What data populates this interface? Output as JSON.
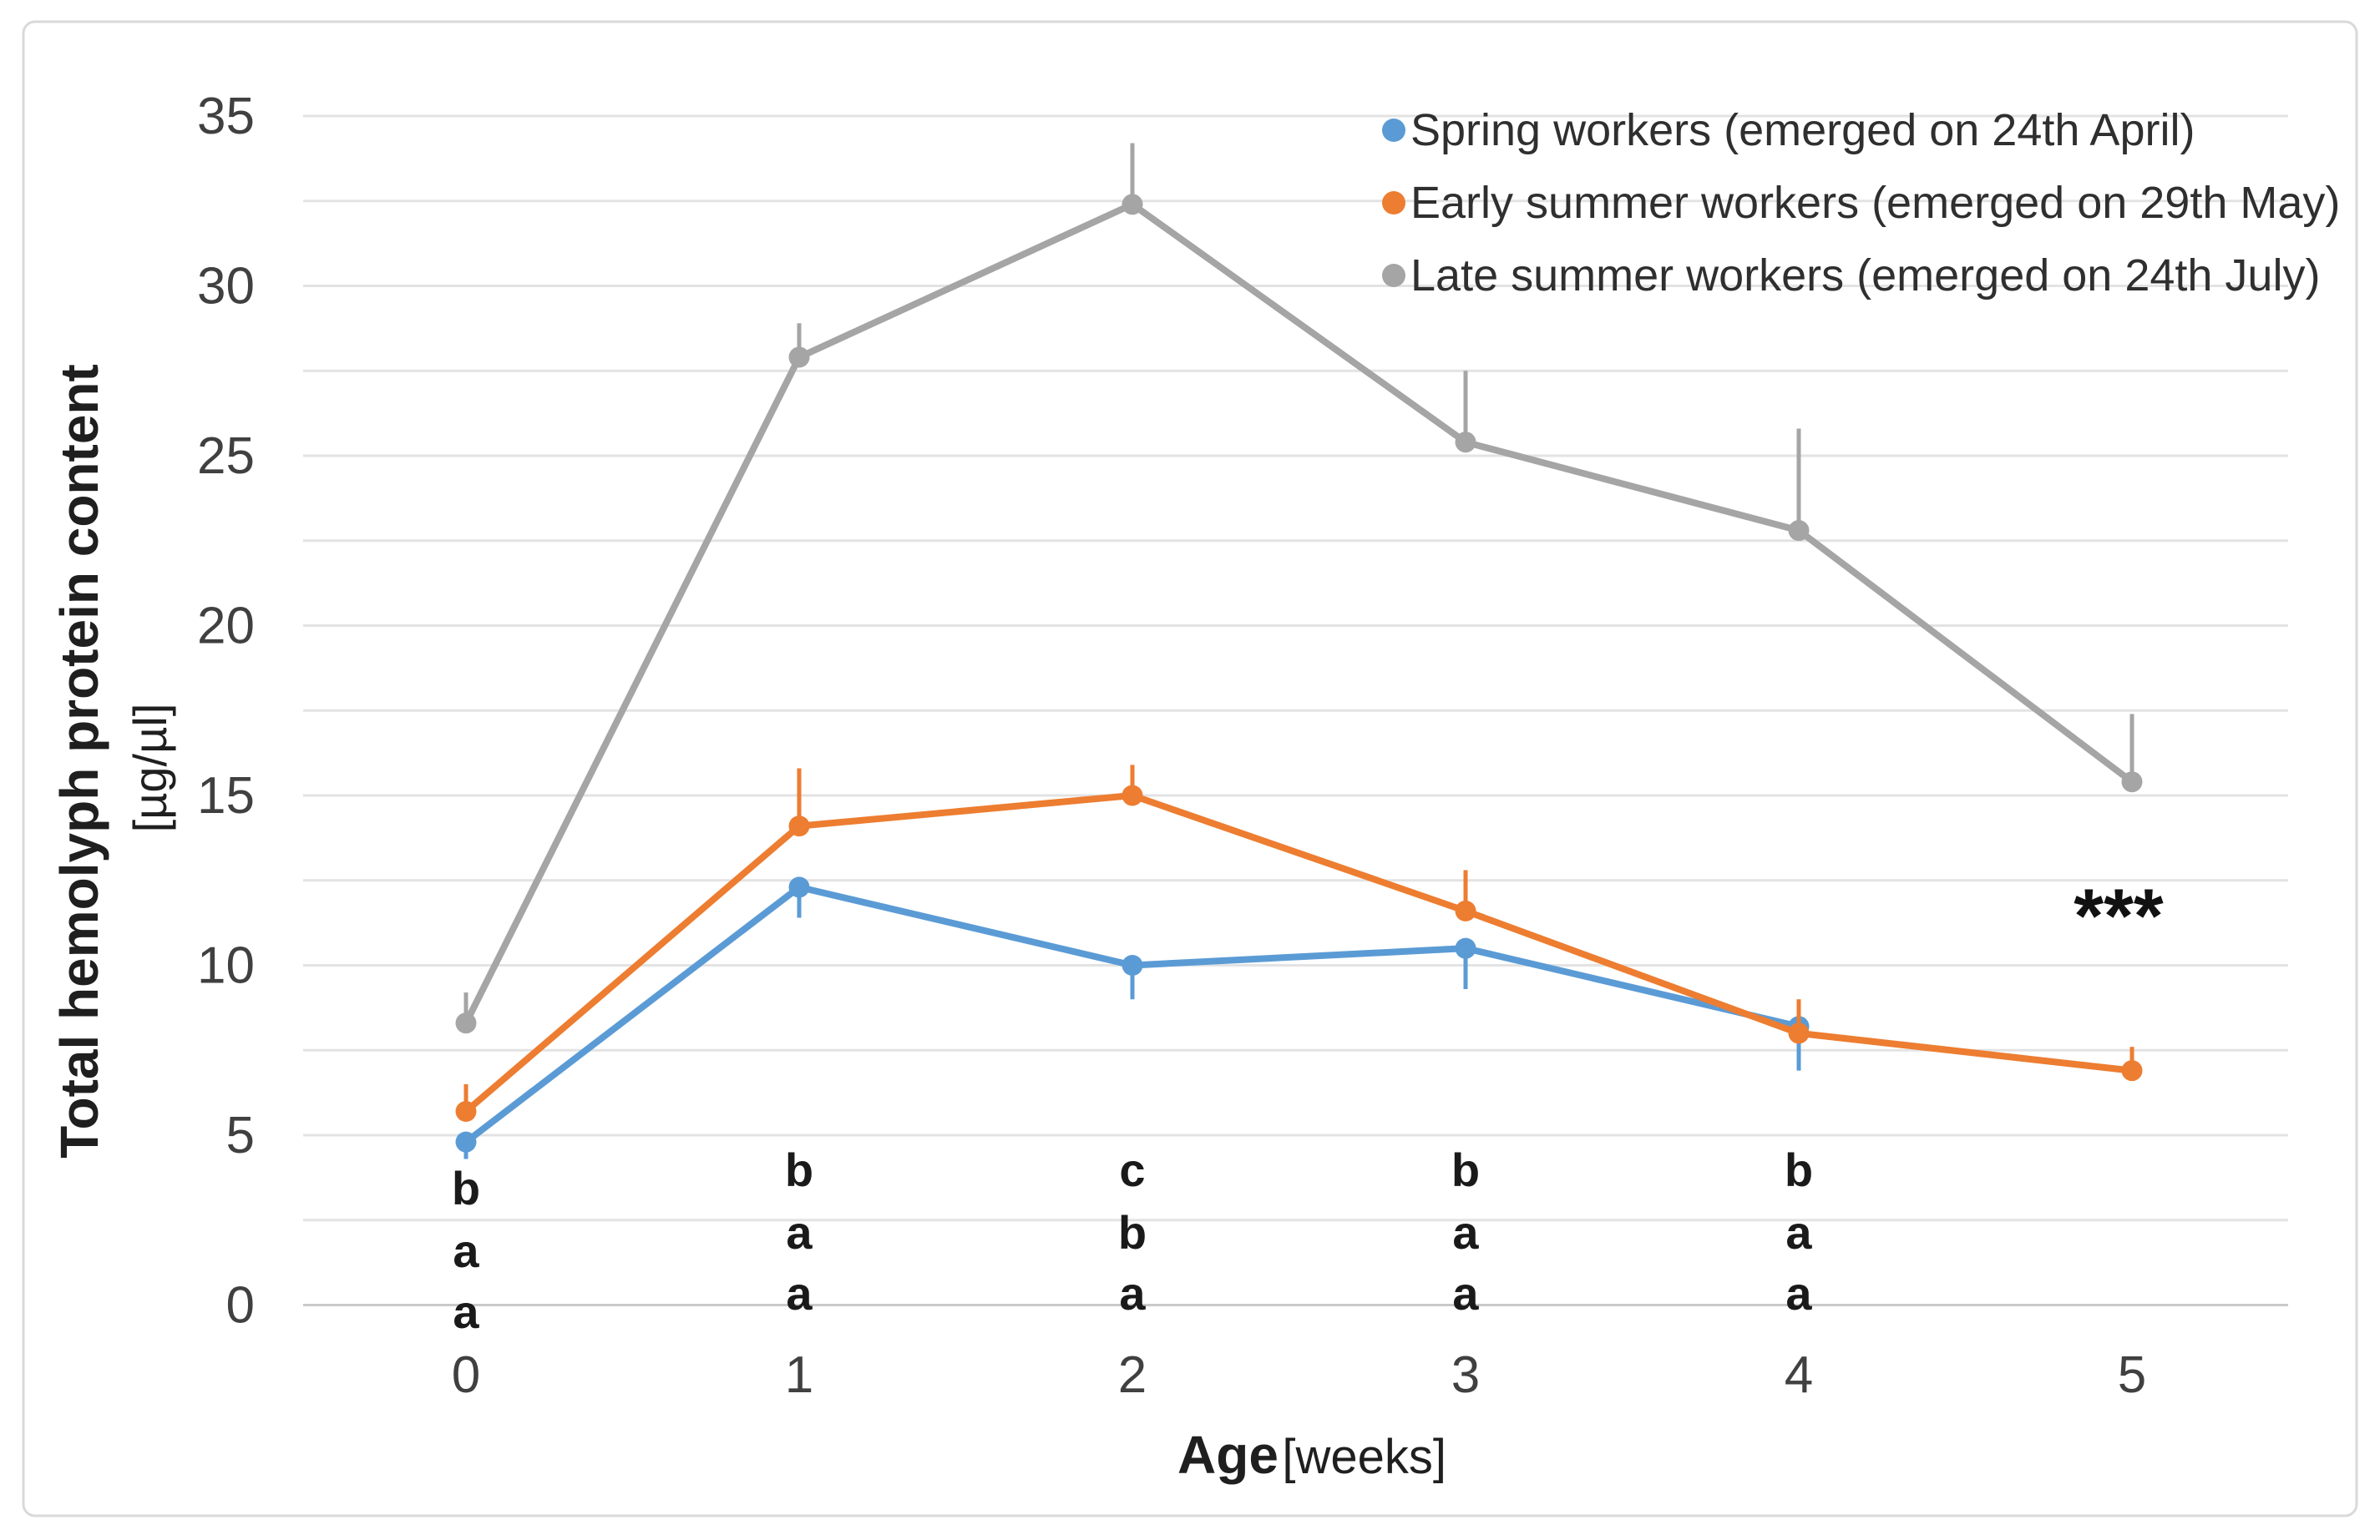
{
  "figure": {
    "y_axis_title": "Total hemolyph protein content",
    "y_axis_unit": "[µg/µl]",
    "x_axis_title": "Age",
    "x_axis_unit": "[weeks]"
  },
  "legend": {
    "position": "top-right",
    "items": [
      {
        "label": "Spring workers (emerged on 24th April)",
        "color": "#5B9BD5"
      },
      {
        "label": "Early summer workers (emerged on 29th May)",
        "color": "#ED7D31"
      },
      {
        "label": "Late summer workers (emerged on 24th July)",
        "color": "#A5A5A5"
      }
    ]
  },
  "chart_data": {
    "type": "line",
    "title": "",
    "xlabel": "Age [weeks]",
    "ylabel": "Total hemolyph protein content [µg/µl]",
    "categories": [
      "0",
      "1",
      "2",
      "3",
      "4",
      "5"
    ],
    "ylim": [
      0,
      35
    ],
    "y_ticks": [
      0,
      5,
      10,
      15,
      20,
      25,
      30,
      35
    ],
    "gridline_step": 2.5,
    "grid": true,
    "legend_position": "top-right",
    "series": [
      {
        "name": "Spring workers (emerged on 24th April)",
        "color": "#5B9BD5",
        "x": [
          0,
          1,
          2,
          3,
          4
        ],
        "values": [
          4.8,
          12.3,
          10.0,
          10.5,
          8.2
        ],
        "error_direction": "minus",
        "errors": [
          0.5,
          0.9,
          1.0,
          1.2,
          1.3
        ]
      },
      {
        "name": "Early summer workers (emerged on 29th May)",
        "color": "#ED7D31",
        "x": [
          0,
          1,
          2,
          3,
          4,
          5
        ],
        "values": [
          5.7,
          14.1,
          15.0,
          11.6,
          8.0,
          6.9
        ],
        "error_direction": "plus",
        "errors": [
          0.8,
          1.7,
          0.9,
          1.2,
          1.0,
          0.7
        ]
      },
      {
        "name": "Late summer workers (emerged on 24th July)",
        "color": "#A5A5A5",
        "x": [
          0,
          1,
          2,
          3,
          4,
          5
        ],
        "values": [
          8.3,
          27.9,
          32.4,
          25.4,
          22.8,
          15.4
        ],
        "error_direction": "plus",
        "errors": [
          0.9,
          1.0,
          1.8,
          2.1,
          3.0,
          2.0
        ]
      }
    ],
    "significance_letters": [
      {
        "week": 0,
        "letters": [
          "b",
          "a",
          "a"
        ]
      },
      {
        "week": 1,
        "letters": [
          "b",
          "a",
          "a"
        ]
      },
      {
        "week": 2,
        "letters": [
          "c",
          "b",
          "a"
        ]
      },
      {
        "week": 3,
        "letters": [
          "b",
          "a",
          "a"
        ]
      },
      {
        "week": 4,
        "letters": [
          "b",
          "a",
          "a"
        ]
      }
    ],
    "annotation": {
      "text": "***",
      "week": 5,
      "y_value": 11.3
    }
  },
  "colors": {
    "gridline": "#E3E3E3",
    "axis_line": "#C9C9C9",
    "tick_text": "#404040",
    "letter_text": "#1a1a1a",
    "figure_border": "#D9D9D9",
    "background": "#FFFFFF"
  }
}
